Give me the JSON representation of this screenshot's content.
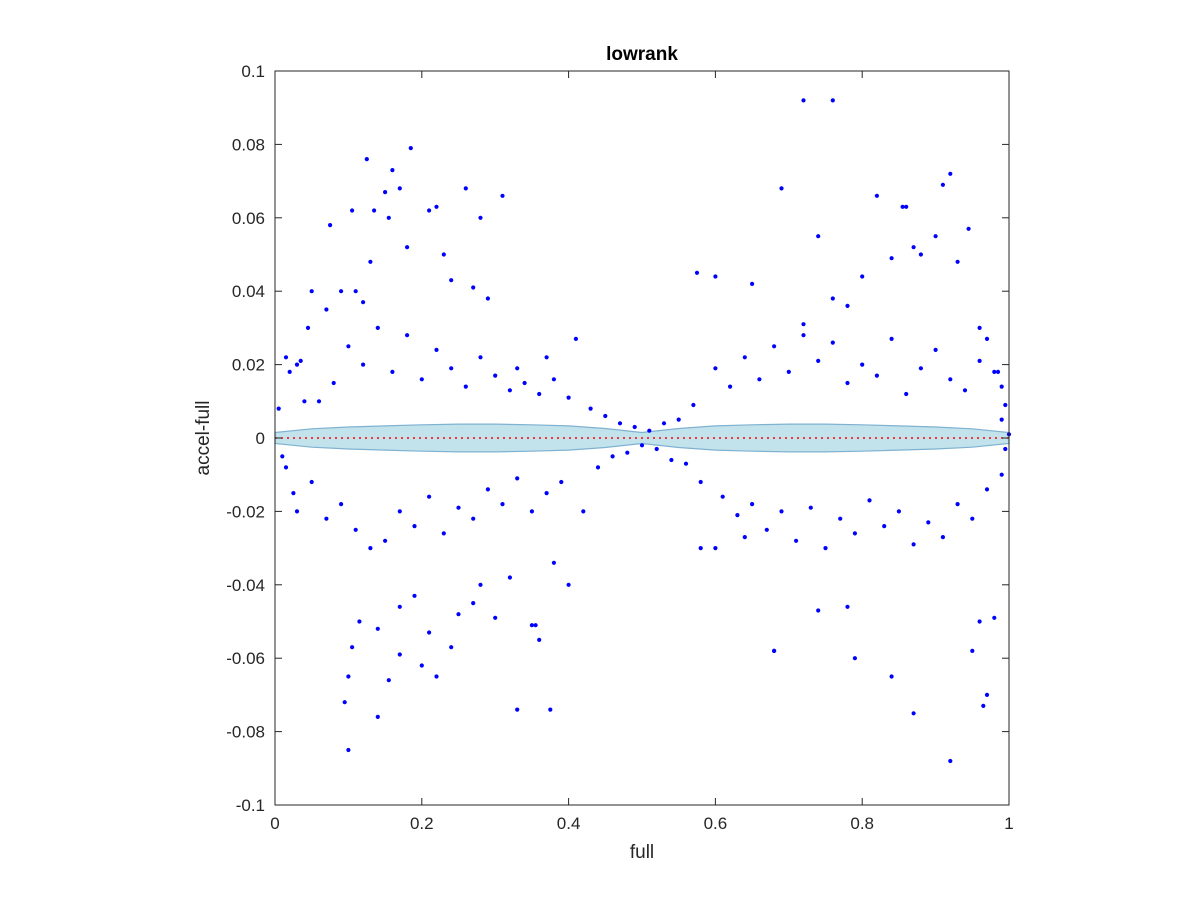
{
  "chart_data": {
    "type": "scatter",
    "title": "lowrank",
    "xlabel": "full",
    "ylabel": "accel-full",
    "xlim": [
      0,
      1
    ],
    "ylim": [
      -0.1,
      0.1
    ],
    "xticks": [
      0,
      0.2,
      0.4,
      0.6,
      0.8,
      1
    ],
    "xtick_labels": [
      "0",
      "0.2",
      "0.4",
      "0.6",
      "0.8",
      "1"
    ],
    "yticks": [
      -0.1,
      -0.08,
      -0.06,
      -0.04,
      -0.02,
      0,
      0.02,
      0.04,
      0.06,
      0.08,
      0.1
    ],
    "ytick_labels": [
      "-0.1",
      "-0.08",
      "-0.06",
      "-0.04",
      "-0.02",
      "0",
      "0.02",
      "0.04",
      "0.06",
      "0.08",
      "0.1"
    ],
    "grid": false,
    "colors": {
      "points": "#0000ff",
      "band_fill": "#add8e6",
      "band_edge": "#7fb2d0",
      "reference_line": "#ff0000",
      "axes": "#262626"
    },
    "reference_line": {
      "y": 0,
      "style": "dotted"
    },
    "band": {
      "x": [
        0,
        0.05,
        0.1,
        0.15,
        0.2,
        0.25,
        0.3,
        0.35,
        0.4,
        0.45,
        0.5,
        0.55,
        0.6,
        0.65,
        0.7,
        0.75,
        0.8,
        0.85,
        0.9,
        0.95,
        1
      ],
      "upper": [
        0.0015,
        0.0025,
        0.003,
        0.0033,
        0.0036,
        0.0038,
        0.0038,
        0.0036,
        0.0033,
        0.0026,
        0.0015,
        0.0026,
        0.0033,
        0.0036,
        0.0038,
        0.0038,
        0.0036,
        0.0033,
        0.003,
        0.0025,
        0.0015
      ],
      "lower": [
        -0.0015,
        -0.0025,
        -0.003,
        -0.0033,
        -0.0036,
        -0.0038,
        -0.0038,
        -0.0036,
        -0.0033,
        -0.0026,
        -0.0015,
        -0.0026,
        -0.0033,
        -0.0036,
        -0.0038,
        -0.0038,
        -0.0036,
        -0.0033,
        -0.003,
        -0.0025,
        -0.0015
      ]
    },
    "series": [
      {
        "x": [
          0.72,
          0.76,
          0.125,
          0.185,
          0.16,
          0.17,
          0.15,
          0.26,
          0.31,
          0.28,
          0.22,
          0.21,
          0.105,
          0.075,
          0.135,
          0.155,
          0.92,
          0.91,
          0.86,
          0.74,
          0.82,
          0.855,
          0.87,
          0.9,
          0.945,
          0.65,
          0.575,
          0.6,
          0.11,
          0.13,
          0.09,
          0.05,
          0.03,
          0.015,
          0.035,
          0.02,
          0.045,
          0.07,
          0.12,
          0.18,
          0.23,
          0.24,
          0.27,
          0.29,
          0.33,
          0.37,
          0.41,
          0.69,
          0.72,
          0.76,
          0.78,
          0.8,
          0.84,
          0.88,
          0.93,
          0.96,
          0.97,
          0.99,
          0.985,
          0.995,
          0.1,
          0.095,
          0.14,
          0.155,
          0.17,
          0.2,
          0.22,
          0.24,
          0.3,
          0.33,
          0.375,
          0.35,
          0.355,
          0.4,
          0.58,
          0.6,
          0.64,
          0.68,
          0.68,
          0.74,
          0.78,
          0.79,
          0.84,
          0.87,
          0.92,
          0.95,
          0.965,
          0.98,
          0.97,
          0.96,
          0.105,
          0.1,
          0.115,
          0.14,
          0.17,
          0.19,
          0.21,
          0.25,
          0.28,
          0.27,
          0.32,
          0.36,
          0.38,
          0.42,
          0.43,
          0.45,
          0.47,
          0.49,
          0.51,
          0.53,
          0.55,
          0.57,
          0.44,
          0.46,
          0.48,
          0.5,
          0.52,
          0.54,
          0.56,
          0.58,
          0.06,
          0.08,
          0.1,
          0.12,
          0.14,
          0.16,
          0.18,
          0.2,
          0.22,
          0.24,
          0.26,
          0.28,
          0.3,
          0.32,
          0.34,
          0.36,
          0.38,
          0.4,
          0.6,
          0.62,
          0.64,
          0.66,
          0.68,
          0.7,
          0.72,
          0.74,
          0.76,
          0.78,
          0.8,
          0.82,
          0.84,
          0.86,
          0.88,
          0.9,
          0.92,
          0.94,
          0.96,
          0.98,
          0.05,
          0.07,
          0.09,
          0.11,
          0.13,
          0.15,
          0.17,
          0.19,
          0.21,
          0.23,
          0.25,
          0.27,
          0.29,
          0.31,
          0.33,
          0.35,
          0.37,
          0.39,
          0.61,
          0.63,
          0.65,
          0.67,
          0.69,
          0.71,
          0.73,
          0.75,
          0.77,
          0.79,
          0.81,
          0.83,
          0.85,
          0.87,
          0.89,
          0.91,
          0.93,
          0.95,
          0.97,
          0.99,
          0.01,
          0.005,
          0.025,
          0.04,
          0.015,
          0.03,
          1.0,
          0.995,
          0.99
        ],
        "y": [
          0.092,
          0.092,
          0.076,
          0.079,
          0.073,
          0.068,
          0.067,
          0.068,
          0.066,
          0.06,
          0.063,
          0.062,
          0.062,
          0.058,
          0.062,
          0.06,
          0.072,
          0.069,
          0.063,
          0.055,
          0.066,
          0.063,
          0.052,
          0.055,
          0.057,
          0.042,
          0.045,
          0.044,
          0.04,
          0.048,
          0.04,
          0.04,
          0.02,
          0.022,
          0.021,
          0.018,
          0.03,
          0.035,
          0.037,
          0.052,
          0.05,
          0.043,
          0.041,
          0.038,
          0.019,
          0.022,
          0.027,
          0.068,
          0.031,
          0.038,
          0.036,
          0.044,
          0.049,
          0.05,
          0.048,
          0.03,
          0.027,
          0.014,
          0.018,
          0.009,
          -0.085,
          -0.072,
          -0.076,
          -0.066,
          -0.059,
          -0.062,
          -0.065,
          -0.057,
          -0.049,
          -0.074,
          -0.074,
          -0.051,
          -0.051,
          -0.04,
          -0.03,
          -0.03,
          -0.027,
          -0.058,
          -0.058,
          -0.047,
          -0.046,
          -0.06,
          -0.065,
          -0.075,
          -0.088,
          -0.058,
          -0.073,
          -0.049,
          -0.07,
          -0.05,
          -0.057,
          -0.065,
          -0.05,
          -0.052,
          -0.046,
          -0.043,
          -0.053,
          -0.048,
          -0.04,
          -0.045,
          -0.038,
          -0.055,
          -0.034,
          -0.02,
          0.008,
          0.006,
          0.004,
          0.003,
          0.002,
          0.004,
          0.005,
          0.009,
          -0.008,
          -0.005,
          -0.004,
          -0.002,
          -0.003,
          -0.006,
          -0.007,
          -0.012,
          0.01,
          0.015,
          0.025,
          0.02,
          0.03,
          0.018,
          0.028,
          0.016,
          0.024,
          0.019,
          0.014,
          0.022,
          0.017,
          0.013,
          0.015,
          0.012,
          0.016,
          0.011,
          0.019,
          0.014,
          0.022,
          0.016,
          0.025,
          0.018,
          0.028,
          0.021,
          0.026,
          0.015,
          0.02,
          0.017,
          0.027,
          0.012,
          0.019,
          0.024,
          0.016,
          0.013,
          0.021,
          0.018,
          -0.012,
          -0.022,
          -0.018,
          -0.025,
          -0.03,
          -0.028,
          -0.02,
          -0.024,
          -0.016,
          -0.026,
          -0.019,
          -0.022,
          -0.014,
          -0.018,
          -0.011,
          -0.02,
          -0.015,
          -0.012,
          -0.016,
          -0.021,
          -0.018,
          -0.025,
          -0.02,
          -0.028,
          -0.019,
          -0.03,
          -0.022,
          -0.026,
          -0.017,
          -0.024,
          -0.02,
          -0.029,
          -0.023,
          -0.027,
          -0.018,
          -0.022,
          -0.014,
          -0.01,
          -0.005,
          0.008,
          -0.015,
          0.01,
          -0.008,
          -0.02,
          0.001,
          -0.003,
          0.005
        ]
      }
    ]
  }
}
